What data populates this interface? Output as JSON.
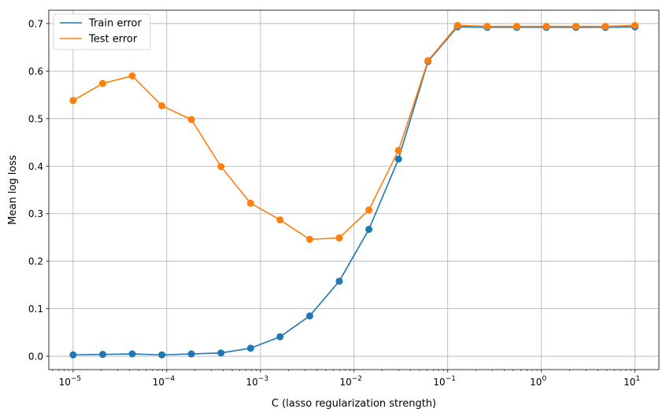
{
  "chart_data": {
    "type": "line",
    "title": "",
    "xlabel": "C (lasso regularization strength)",
    "ylabel": "Mean log loss",
    "xscale": "log",
    "xlim": [
      5.5e-06,
      18.0
    ],
    "ylim": [
      -0.028,
      0.728
    ],
    "grid": true,
    "legend_position": "top-left",
    "x_ticks": [
      {
        "value": 1e-05,
        "base": "10",
        "exp": "−5"
      },
      {
        "value": 0.0001,
        "base": "10",
        "exp": "−4"
      },
      {
        "value": 0.001,
        "base": "10",
        "exp": "−3"
      },
      {
        "value": 0.01,
        "base": "10",
        "exp": "−2"
      },
      {
        "value": 0.1,
        "base": "10",
        "exp": "−1"
      },
      {
        "value": 1,
        "base": "10",
        "exp": "0"
      },
      {
        "value": 10,
        "base": "10",
        "exp": "1"
      }
    ],
    "y_ticks": [
      0.0,
      0.1,
      0.2,
      0.3,
      0.4,
      0.5,
      0.6,
      0.7
    ],
    "y_tick_labels": [
      "0.0",
      "0.1",
      "0.2",
      "0.3",
      "0.4",
      "0.5",
      "0.6",
      "0.7"
    ],
    "x": [
      1e-05,
      2.07e-05,
      4.28e-05,
      8.86e-05,
      0.000183,
      0.000379,
      0.000785,
      0.00162,
      0.00336,
      0.00695,
      0.0144,
      0.0298,
      0.0616,
      0.127,
      0.264,
      0.546,
      1.13,
      2.34,
      4.83,
      10.0
    ],
    "series": [
      {
        "name": "Train error",
        "color": "#1f77b4",
        "values": [
          0.003,
          0.004,
          0.005,
          0.003,
          0.005,
          0.007,
          0.017,
          0.041,
          0.085,
          0.158,
          0.267,
          0.415,
          0.62,
          0.693,
          0.692,
          0.692,
          0.692,
          0.692,
          0.692,
          0.693
        ]
      },
      {
        "name": "Test error",
        "color": "#ff7f0e",
        "values": [
          0.538,
          0.574,
          0.59,
          0.527,
          0.498,
          0.399,
          0.322,
          0.287,
          0.246,
          0.249,
          0.308,
          0.433,
          0.622,
          0.696,
          0.694,
          0.694,
          0.694,
          0.694,
          0.694,
          0.696
        ]
      }
    ]
  }
}
